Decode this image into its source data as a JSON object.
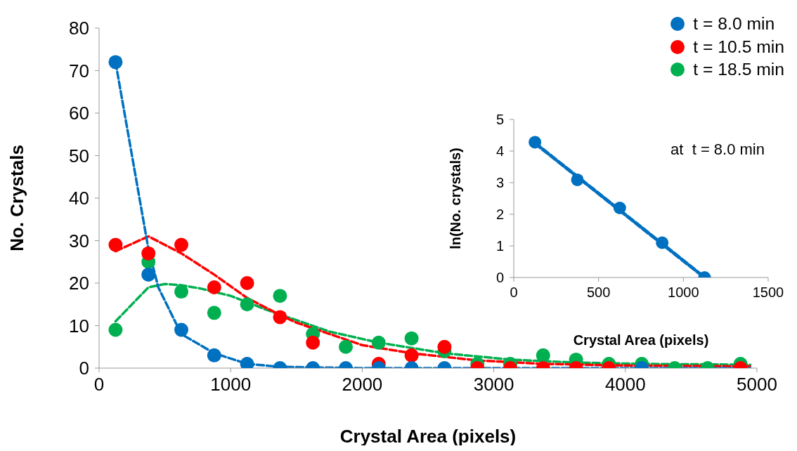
{
  "chart_data": [
    {
      "type": "scatter",
      "xlabel": "Crystal Area (pixels)",
      "ylabel": "No. Crystals",
      "xlim": [
        0,
        5000
      ],
      "xticks": [
        0,
        1000,
        2000,
        3000,
        4000,
        5000
      ],
      "ylim": [
        0,
        80
      ],
      "yticks": [
        0,
        10,
        20,
        30,
        40,
        50,
        60,
        70,
        80
      ],
      "legend": "top right",
      "marker": "circle",
      "x": [
        125,
        375,
        625,
        875,
        1125,
        1375,
        1625,
        1875,
        2125,
        2375,
        2625,
        2875,
        3125,
        3375,
        3625,
        3875,
        4125,
        4375,
        4625,
        4875
      ],
      "series": [
        {
          "type": "line",
          "line_style": "dashed",
          "marker": "none",
          "color": "#0070c0",
          "x": [
            125,
            375,
            450,
            625,
            875,
            1125,
            1375,
            2000,
            4950
          ],
          "values": [
            72,
            28,
            19,
            8,
            3.5,
            1,
            0.3,
            0,
            0
          ]
        },
        {
          "type": "line",
          "line_style": "dashed",
          "marker": "none",
          "color": "#ff0000",
          "x": [
            125,
            375,
            625,
            875,
            1125,
            1375,
            1500,
            2000,
            2375,
            2875,
            3375,
            4000,
            4950
          ],
          "values": [
            27.5,
            31,
            27,
            22,
            16.5,
            12.5,
            10.7,
            5.4,
            3.5,
            1.8,
            1,
            0.6,
            0.4
          ]
        },
        {
          "type": "line",
          "line_style": "dashed",
          "marker": "none",
          "color": "#00b050",
          "x": [
            125,
            375,
            500,
            625,
            775,
            1000,
            1275,
            1750,
            2125,
            2625,
            3125,
            3625,
            4125,
            4950
          ],
          "values": [
            11,
            19,
            19.8,
            19.5,
            18.7,
            17,
            13.7,
            8.6,
            6,
            3.5,
            2,
            1.3,
            1,
            0.8
          ]
        },
        {
          "name": "t = 8.0 min",
          "color": "#0070c0",
          "values": [
            72,
            22,
            9,
            3,
            1,
            0,
            0,
            0,
            0,
            0,
            0,
            null,
            null,
            null,
            null,
            null,
            0,
            null,
            null,
            null
          ]
        },
        {
          "name": "t = 10.5 min",
          "color": "#ff0000",
          "values": [
            29,
            27,
            29,
            19,
            20,
            12,
            6,
            null,
            1,
            3,
            5,
            0,
            0,
            0,
            0,
            0,
            null,
            null,
            null,
            0
          ]
        },
        {
          "name": "t = 18.5 min",
          "color": "#00b050",
          "values": [
            9,
            25,
            18,
            13,
            15,
            17,
            8,
            5,
            6,
            7,
            4,
            1,
            1,
            3,
            2,
            1,
            1,
            0,
            0,
            1
          ]
        }
      ]
    },
    {
      "type": "scatter",
      "xlabel": "Crystal Area (pixels)",
      "ylabel": "ln(No. crystals)",
      "xlim": [
        0,
        1500
      ],
      "xticks": [
        0,
        500,
        1000,
        1500
      ],
      "ylim": [
        0,
        5
      ],
      "yticks": [
        0,
        1,
        2,
        3,
        4,
        5
      ],
      "marker": "circle",
      "annotations": [
        "at  t = 8.0 min"
      ],
      "x": [
        125,
        375,
        625,
        875,
        1125
      ],
      "series": [
        {
          "type": "line",
          "line_style": "dashed",
          "marker": "none",
          "color": "#0070c0",
          "x": [
            125,
            1125
          ],
          "values": [
            4.25,
            0
          ]
        },
        {
          "color": "#0070c0",
          "values": [
            4.28,
            3.09,
            2.2,
            1.1,
            0
          ]
        }
      ]
    }
  ]
}
